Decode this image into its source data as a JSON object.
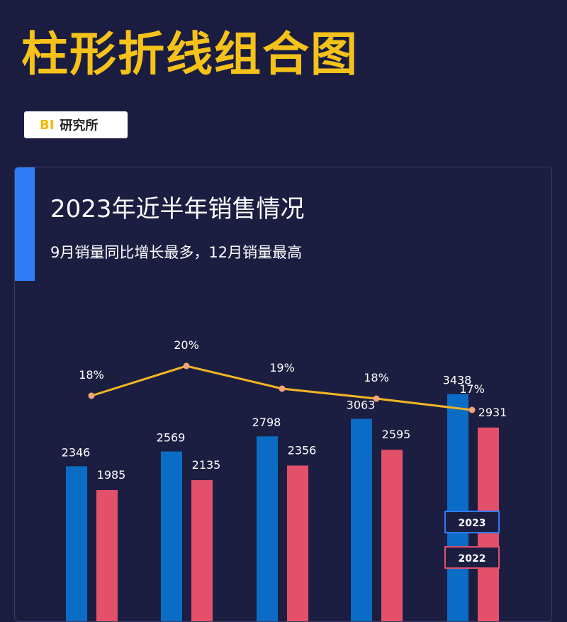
{
  "header": {
    "title": "柱形折线组合图",
    "source_brand": "BI",
    "source_name": "研究所"
  },
  "card": {
    "title": "2023年近半年销售情况",
    "subtitle": "9月销量同比增长最多，12月销量最高"
  },
  "colors": {
    "bar_2023": "#0a6cc4",
    "bar_2022": "#e2506a",
    "line": "#f3b521",
    "point": "#f2a37a",
    "legend_2023_border": "#2f7cf6",
    "legend_2022_border": "#e2506a"
  },
  "chart_data": {
    "type": "bar",
    "series": [
      {
        "name": "2023",
        "values": [
          2346,
          2569,
          2798,
          3063,
          3438
        ]
      },
      {
        "name": "2022",
        "values": [
          1985,
          2135,
          2356,
          2595,
          2931
        ]
      }
    ],
    "line": {
      "values": [
        18,
        20,
        19,
        18,
        17
      ],
      "labels": [
        "18%",
        "20%",
        "19%",
        "18%",
        "17%"
      ]
    },
    "legend": [
      "2023",
      "2022"
    ],
    "legend_position": "right"
  }
}
